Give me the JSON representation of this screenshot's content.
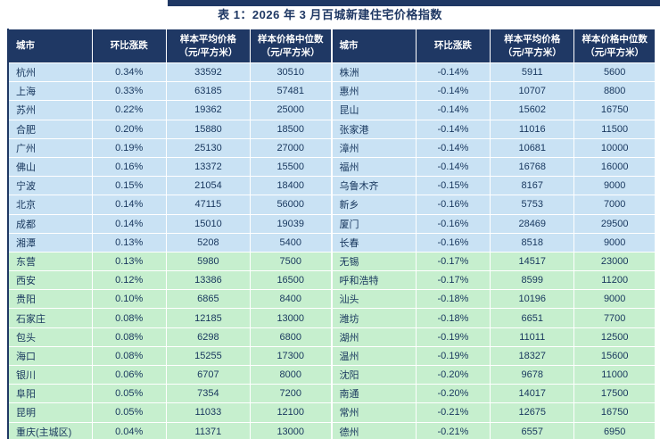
{
  "title": "表 1：2026 年 3 月百城新建住宅价格指数",
  "columns": [
    {
      "label": "城市",
      "sub": ""
    },
    {
      "label": "环比涨跌",
      "sub": ""
    },
    {
      "label": "样本平均价格",
      "sub": "（元/平方米）"
    },
    {
      "label": "样本价格中位数",
      "sub": "（元/平方米）"
    }
  ],
  "left_table": {
    "rows": [
      {
        "city": "杭州",
        "change": "0.34%",
        "avg": "33592",
        "median": "30510",
        "group": "blue"
      },
      {
        "city": "上海",
        "change": "0.33%",
        "avg": "63185",
        "median": "57481",
        "group": "blue"
      },
      {
        "city": "苏州",
        "change": "0.22%",
        "avg": "19362",
        "median": "25000",
        "group": "blue"
      },
      {
        "city": "合肥",
        "change": "0.20%",
        "avg": "15880",
        "median": "18500",
        "group": "blue"
      },
      {
        "city": "广州",
        "change": "0.19%",
        "avg": "25130",
        "median": "27000",
        "group": "blue"
      },
      {
        "city": "佛山",
        "change": "0.16%",
        "avg": "13372",
        "median": "15500",
        "group": "blue"
      },
      {
        "city": "宁波",
        "change": "0.15%",
        "avg": "21054",
        "median": "18400",
        "group": "blue"
      },
      {
        "city": "北京",
        "change": "0.14%",
        "avg": "47115",
        "median": "56000",
        "group": "blue"
      },
      {
        "city": "成都",
        "change": "0.14%",
        "avg": "15010",
        "median": "19039",
        "group": "blue"
      },
      {
        "city": "湘潭",
        "change": "0.13%",
        "avg": "5208",
        "median": "5400",
        "group": "blue"
      },
      {
        "city": "东营",
        "change": "0.13%",
        "avg": "5980",
        "median": "7500",
        "group": "green"
      },
      {
        "city": "西安",
        "change": "0.12%",
        "avg": "13386",
        "median": "16500",
        "group": "green"
      },
      {
        "city": "贵阳",
        "change": "0.10%",
        "avg": "6865",
        "median": "8400",
        "group": "green"
      },
      {
        "city": "石家庄",
        "change": "0.08%",
        "avg": "12185",
        "median": "13000",
        "group": "green"
      },
      {
        "city": "包头",
        "change": "0.08%",
        "avg": "6298",
        "median": "6800",
        "group": "green"
      },
      {
        "city": "海口",
        "change": "0.08%",
        "avg": "15255",
        "median": "17300",
        "group": "green"
      },
      {
        "city": "银川",
        "change": "0.06%",
        "avg": "6707",
        "median": "8000",
        "group": "green"
      },
      {
        "city": "阜阳",
        "change": "0.05%",
        "avg": "7354",
        "median": "7200",
        "group": "green"
      },
      {
        "city": "昆明",
        "change": "0.05%",
        "avg": "11033",
        "median": "12100",
        "group": "green"
      },
      {
        "city": "重庆(主城区)",
        "change": "0.04%",
        "avg": "11371",
        "median": "13000",
        "group": "green"
      }
    ]
  },
  "right_table": {
    "rows": [
      {
        "city": "株洲",
        "change": "-0.14%",
        "avg": "5911",
        "median": "5600",
        "group": "blue"
      },
      {
        "city": "惠州",
        "change": "-0.14%",
        "avg": "10707",
        "median": "8800",
        "group": "blue"
      },
      {
        "city": "昆山",
        "change": "-0.14%",
        "avg": "15602",
        "median": "16750",
        "group": "blue"
      },
      {
        "city": "张家港",
        "change": "-0.14%",
        "avg": "11016",
        "median": "11500",
        "group": "blue"
      },
      {
        "city": "漳州",
        "change": "-0.14%",
        "avg": "10681",
        "median": "10000",
        "group": "blue"
      },
      {
        "city": "福州",
        "change": "-0.14%",
        "avg": "16768",
        "median": "16000",
        "group": "blue"
      },
      {
        "city": "乌鲁木齐",
        "change": "-0.15%",
        "avg": "8167",
        "median": "9000",
        "group": "blue"
      },
      {
        "city": "新乡",
        "change": "-0.16%",
        "avg": "5753",
        "median": "7000",
        "group": "blue"
      },
      {
        "city": "厦门",
        "change": "-0.16%",
        "avg": "28469",
        "median": "29500",
        "group": "blue"
      },
      {
        "city": "长春",
        "change": "-0.16%",
        "avg": "8518",
        "median": "9000",
        "group": "blue"
      },
      {
        "city": "无锡",
        "change": "-0.17%",
        "avg": "14517",
        "median": "23000",
        "group": "green"
      },
      {
        "city": "呼和浩特",
        "change": "-0.17%",
        "avg": "8599",
        "median": "11200",
        "group": "green"
      },
      {
        "city": "汕头",
        "change": "-0.18%",
        "avg": "10196",
        "median": "9000",
        "group": "green"
      },
      {
        "city": "潍坊",
        "change": "-0.18%",
        "avg": "6651",
        "median": "7700",
        "group": "green"
      },
      {
        "city": "湖州",
        "change": "-0.19%",
        "avg": "11011",
        "median": "12500",
        "group": "green"
      },
      {
        "city": "温州",
        "change": "-0.19%",
        "avg": "18327",
        "median": "15600",
        "group": "green"
      },
      {
        "city": "沈阳",
        "change": "-0.20%",
        "avg": "9678",
        "median": "11000",
        "group": "green"
      },
      {
        "city": "南通",
        "change": "-0.20%",
        "avg": "14017",
        "median": "17500",
        "group": "green"
      },
      {
        "city": "常州",
        "change": "-0.21%",
        "avg": "12675",
        "median": "16750",
        "group": "green"
      },
      {
        "city": "德州",
        "change": "-0.21%",
        "avg": "6557",
        "median": "6950",
        "group": "green"
      }
    ]
  },
  "colors": {
    "header_bg": "#1F3864",
    "header_text": "#FFFFFF",
    "row_blue": "#C9E2F4",
    "row_green": "#C6EFCE",
    "cell_text": "#17365D",
    "title_text": "#1F3864",
    "top_bar": "#1F3864",
    "border": "#FFFFFF"
  }
}
